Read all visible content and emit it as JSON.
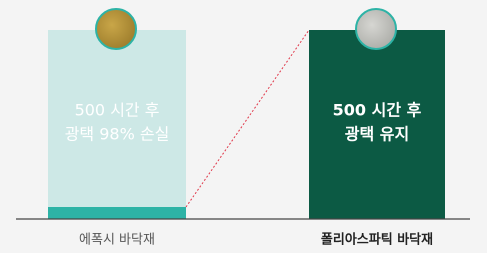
{
  "panels": [
    {
      "lines": [
        "500 시간 후",
        "광택 98% 손실"
      ],
      "label": "에폭시 바닥재"
    },
    {
      "lines": [
        "500 시간 후",
        "광택 유지"
      ],
      "label": "폴리아스파틱 바닥재"
    }
  ]
}
